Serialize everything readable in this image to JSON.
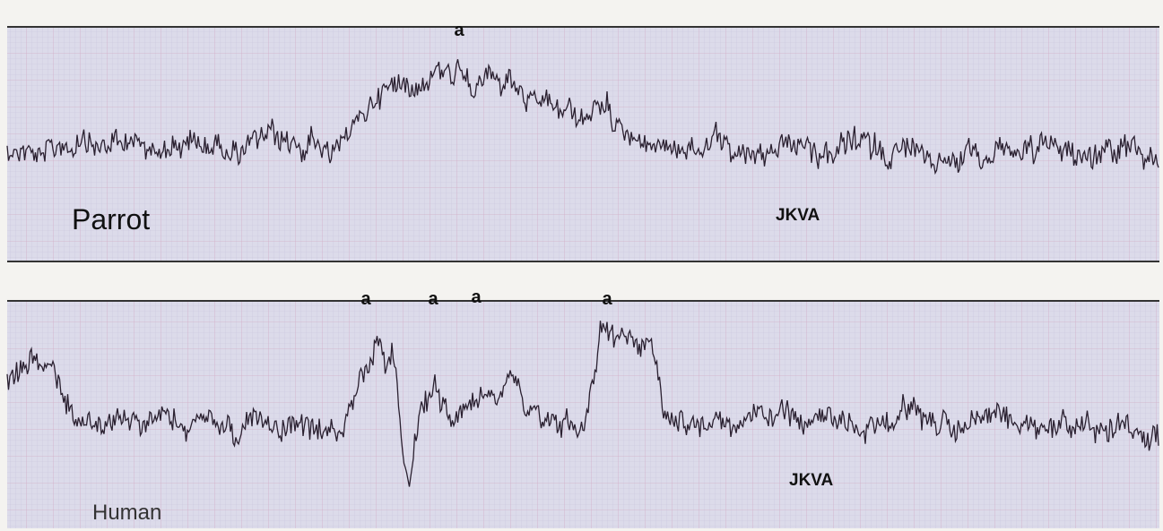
{
  "panels": [
    {
      "markers": [
        "a"
      ],
      "subject": "Parrot",
      "initials": "JKVA"
    },
    {
      "markers": [
        "a",
        "a",
        "a",
        "a"
      ],
      "subject": "Human",
      "initials": "JKVA"
    }
  ]
}
